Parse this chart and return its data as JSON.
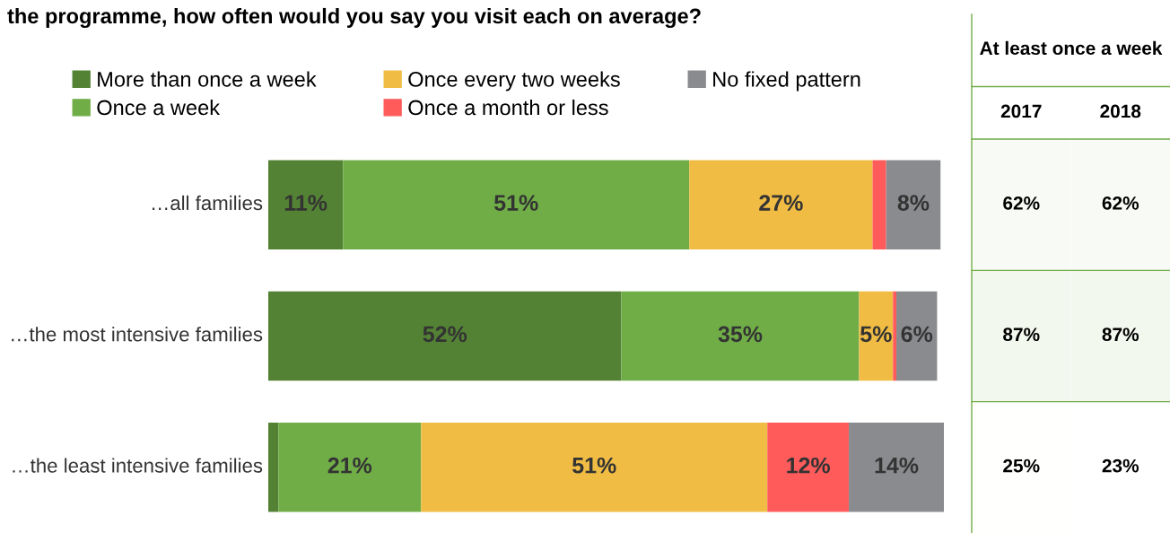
{
  "chart_data": [
    {
      "type": "bar",
      "orientation": "horizontal",
      "stacked": true,
      "title": "the programme, how often would you say you visit each on average?",
      "categories": [
        "…all families",
        "…the most intensive families",
        "…the least intensive families"
      ],
      "series": [
        {
          "name": "More than once a week",
          "color": "#548235",
          "values": [
            11,
            52,
            1.5
          ],
          "value_labels": [
            "11%",
            "52%",
            null
          ]
        },
        {
          "name": "Once a week",
          "color": "#70ad47",
          "values": [
            51,
            35,
            21
          ],
          "value_labels": [
            "51%",
            "35%",
            "21%"
          ]
        },
        {
          "name": "Once every two weeks",
          "color": "#f0bc44",
          "values": [
            27,
            5,
            51
          ],
          "value_labels": [
            "27%",
            "5%",
            "51%"
          ]
        },
        {
          "name": "Once a month or less",
          "color": "#ff5b5b",
          "values": [
            2,
            0.5,
            12
          ],
          "value_labels": [
            null,
            null,
            "12%"
          ]
        },
        {
          "name": "No fixed pattern",
          "color": "#898b8e",
          "values": [
            8,
            6,
            14
          ],
          "value_labels": [
            "8%",
            "6%",
            "14%"
          ]
        }
      ],
      "legend": "top"
    },
    {
      "type": "heatmap",
      "title": "At least once a week",
      "categories": [
        "2017",
        "2018"
      ],
      "y_categories": [
        null,
        null,
        null
      ],
      "cells": [
        [
          62,
          62
        ],
        [
          87,
          87
        ],
        [
          25,
          23
        ]
      ],
      "cell_labels": [
        [
          "62%",
          "62%"
        ],
        [
          "87%",
          "87%"
        ],
        [
          "25%",
          "23%"
        ]
      ]
    }
  ]
}
